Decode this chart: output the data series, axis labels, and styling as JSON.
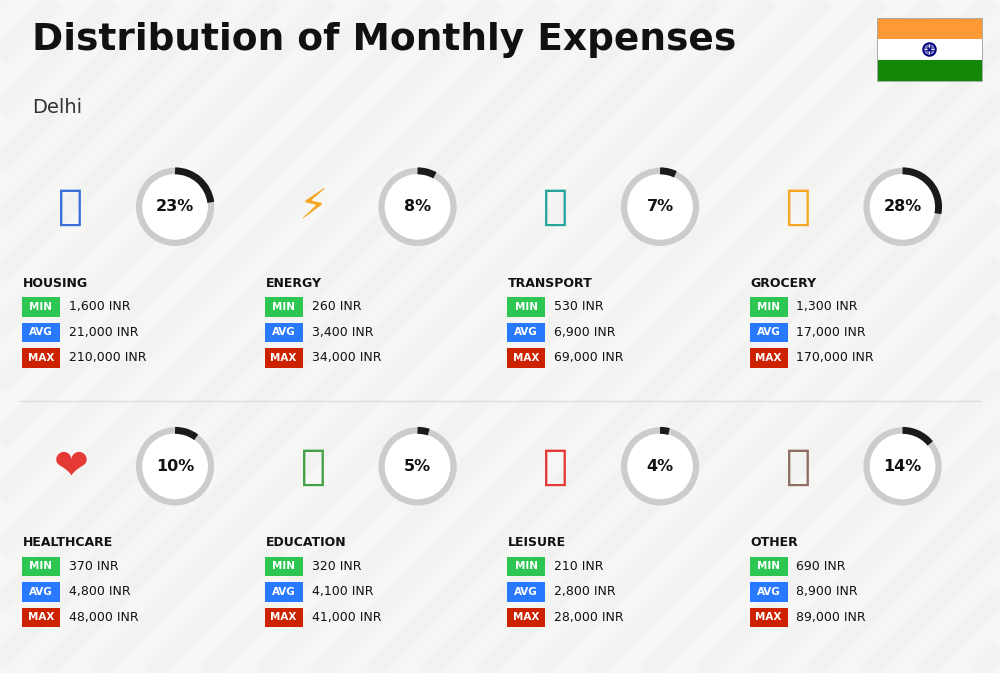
{
  "title": "Distribution of Monthly Expenses",
  "subtitle": "Delhi",
  "background_color": "#f0f0ee",
  "categories": [
    {
      "name": "HOUSING",
      "pct": 23,
      "min": "1,600 INR",
      "avg": "21,000 INR",
      "max": "210,000 INR"
    },
    {
      "name": "ENERGY",
      "pct": 8,
      "min": "260 INR",
      "avg": "3,400 INR",
      "max": "34,000 INR"
    },
    {
      "name": "TRANSPORT",
      "pct": 7,
      "min": "530 INR",
      "avg": "6,900 INR",
      "max": "69,000 INR"
    },
    {
      "name": "GROCERY",
      "pct": 28,
      "min": "1,300 INR",
      "avg": "17,000 INR",
      "max": "170,000 INR"
    },
    {
      "name": "HEALTHCARE",
      "pct": 10,
      "min": "370 INR",
      "avg": "4,800 INR",
      "max": "48,000 INR"
    },
    {
      "name": "EDUCATION",
      "pct": 5,
      "min": "320 INR",
      "avg": "4,100 INR",
      "max": "41,000 INR"
    },
    {
      "name": "LEISURE",
      "pct": 4,
      "min": "210 INR",
      "avg": "2,800 INR",
      "max": "28,000 INR"
    },
    {
      "name": "OTHER",
      "pct": 14,
      "min": "690 INR",
      "avg": "8,900 INR",
      "max": "89,000 INR"
    }
  ],
  "min_color": "#2dc653",
  "avg_color": "#2979ff",
  "max_color": "#cc2200",
  "arc_color_filled": "#1a1a1a",
  "arc_color_empty": "#cccccc",
  "india_flag_colors": [
    "#ff9933",
    "#ffffff",
    "#138808"
  ],
  "grid_cols": 4,
  "grid_rows": 2,
  "stripe_color": "#e4e4e2",
  "divider_color": "#dddddd"
}
